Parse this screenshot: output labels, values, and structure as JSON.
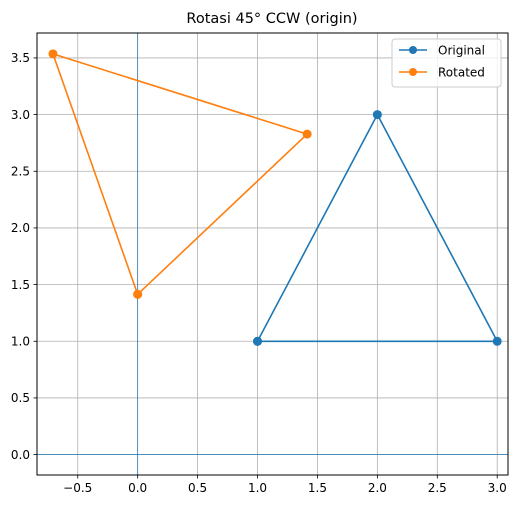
{
  "chart_data": {
    "type": "line",
    "title": "Rotasi 45° CCW (origin)",
    "xlabel": "",
    "ylabel": "",
    "xlim": [
      -0.84,
      3.09
    ],
    "ylim": [
      -0.18,
      3.72
    ],
    "xticks": [
      -0.5,
      0.0,
      0.5,
      1.0,
      1.5,
      2.0,
      2.5,
      3.0
    ],
    "xtick_labels": [
      "−0.5",
      "0.0",
      "0.5",
      "1.0",
      "1.5",
      "2.0",
      "2.5",
      "3.0"
    ],
    "yticks": [
      0.0,
      0.5,
      1.0,
      1.5,
      2.0,
      2.5,
      3.0,
      3.5
    ],
    "ytick_labels": [
      "0.0",
      "0.5",
      "1.0",
      "1.5",
      "2.0",
      "2.5",
      "3.0",
      "3.5"
    ],
    "grid": true,
    "reference_lines": {
      "x": 0,
      "y": 0
    },
    "legend_position": "top-right",
    "series": [
      {
        "name": "Original",
        "color": "#1f77b4",
        "marker": "circle",
        "x": [
          1,
          3,
          2,
          1
        ],
        "y": [
          1,
          1,
          3,
          1
        ]
      },
      {
        "name": "Rotated",
        "color": "#ff7f0e",
        "marker": "circle",
        "x": [
          0.0,
          1.414,
          -0.707,
          0.0
        ],
        "y": [
          1.414,
          2.828,
          3.536,
          1.414
        ]
      }
    ]
  }
}
